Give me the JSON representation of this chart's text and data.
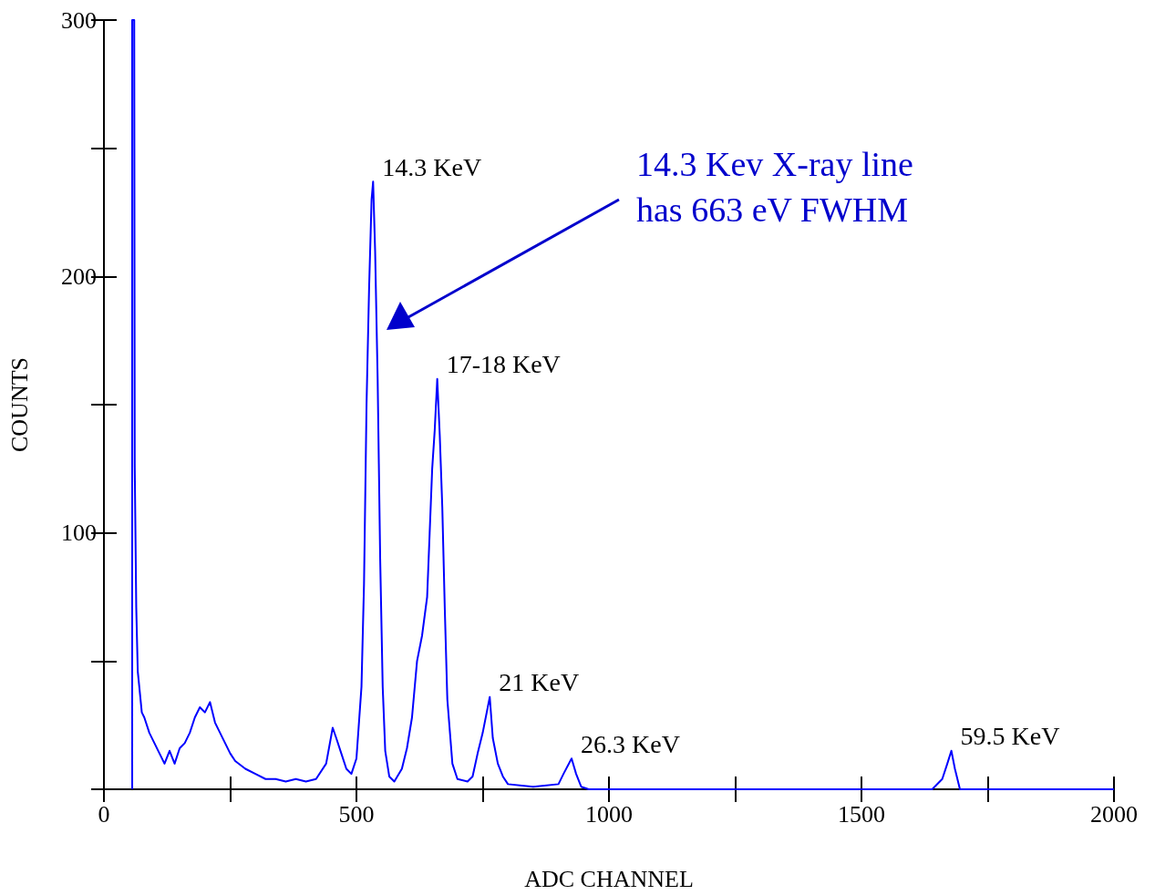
{
  "chart_data": {
    "type": "line",
    "xlabel": "ADC CHANNEL",
    "ylabel": "COUNTS",
    "xlim": [
      0,
      2000
    ],
    "ylim": [
      0,
      300
    ],
    "xticks": [
      0,
      {
        "value": 250,
        "label": null
      },
      500,
      {
        "value": 750,
        "label": null
      },
      1000,
      {
        "value": 1250,
        "label": null
      },
      1500,
      {
        "value": 1750,
        "label": null
      },
      2000
    ],
    "yticks": [
      {
        "value": 0,
        "label": null
      },
      {
        "value": 50,
        "label": null
      },
      100,
      {
        "value": 150,
        "label": null
      },
      200,
      {
        "value": 250,
        "label": null
      },
      300
    ],
    "grid": false,
    "marker": "none",
    "line_style": "solid",
    "series": [
      {
        "color": "#0000ff",
        "x": [
          56,
          56,
          60,
          61,
          64,
          67,
          70,
          75,
          80,
          90,
          100,
          110,
          120,
          130,
          140,
          150,
          160,
          170,
          180,
          190,
          200,
          210,
          220,
          230,
          240,
          250,
          260,
          280,
          300,
          320,
          340,
          360,
          380,
          400,
          420,
          440,
          453,
          460,
          470,
          480,
          490,
          500,
          510,
          515,
          520,
          525,
          530,
          533,
          537,
          542,
          547,
          552,
          557,
          565,
          575,
          590,
          600,
          610,
          620,
          630,
          640,
          645,
          650,
          655,
          660,
          665,
          670,
          675,
          680,
          690,
          700,
          720,
          730,
          740,
          750,
          764,
          770,
          780,
          790,
          800,
          850,
          900,
          910,
          926,
          935,
          945,
          960,
          1000,
          1300,
          1640,
          1660,
          1670,
          1678,
          1685,
          1695,
          2000
        ],
        "values": [
          0,
          300,
          300,
          126,
          71,
          46,
          40,
          30,
          28,
          22,
          18,
          14,
          10,
          15,
          10,
          16,
          18,
          22,
          28,
          32,
          30,
          34,
          26,
          22,
          18,
          14,
          11,
          8,
          6,
          4,
          4,
          3,
          4,
          3,
          4,
          10,
          24,
          20,
          14,
          8,
          6,
          12,
          40,
          80,
          150,
          195,
          230,
          237,
          210,
          160,
          90,
          40,
          15,
          5,
          3,
          8,
          16,
          28,
          50,
          60,
          75,
          100,
          125,
          140,
          160,
          138,
          110,
          70,
          35,
          10,
          4,
          3,
          5,
          14,
          22,
          36,
          20,
          10,
          5,
          2,
          1,
          2,
          6,
          12,
          6,
          1,
          0,
          0,
          0,
          0,
          4,
          10,
          15,
          8,
          0,
          0
        ]
      }
    ],
    "annotations": [
      {
        "text": "14.3 KeV",
        "x": 533,
        "y": 237
      },
      {
        "text": "17-18 KeV",
        "x": 660,
        "y": 160
      },
      {
        "text": "21 KeV",
        "x": 764,
        "y": 36
      },
      {
        "text": "26.3 KeV",
        "x": 926,
        "y": 12
      },
      {
        "text": "59.5 KeV",
        "x": 1678,
        "y": 15
      },
      "14.3 Kev X-ray line\nhas 663 eV FWHM"
    ]
  }
}
